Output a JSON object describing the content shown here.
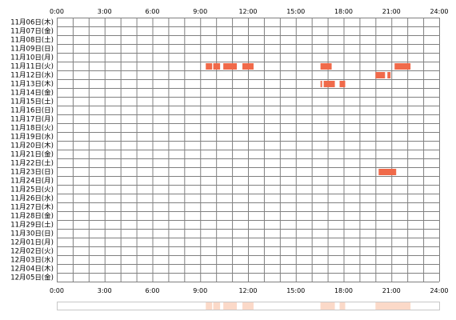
{
  "chart_data": {
    "type": "heatmap",
    "title": "",
    "xlabel": "",
    "ylabel": "",
    "x_ticks": [
      "0:00",
      "3:00",
      "6:00",
      "9:00",
      "12:00",
      "15:00",
      "18:00",
      "21:00",
      "24:00"
    ],
    "xlim": [
      0,
      24
    ],
    "x_unit": "hours",
    "rows": [
      "11月06日(木)",
      "11月07日(金)",
      "11月08日(土)",
      "11月09日(日)",
      "11月10日(月)",
      "11月11日(火)",
      "11月12日(水)",
      "11月13日(木)",
      "11月14日(金)",
      "11月15日(土)",
      "11月16日(日)",
      "11月17日(月)",
      "11月18日(火)",
      "11月19日(水)",
      "11月20日(木)",
      "11月21日(金)",
      "11月22日(土)",
      "11月23日(日)",
      "11月24日(月)",
      "11月25日(火)",
      "11月26日(水)",
      "11月27日(木)",
      "11月28日(金)",
      "11月29日(土)",
      "11月30日(日)",
      "12月01日(月)",
      "12月02日(火)",
      "12月03日(水)",
      "12月04日(木)",
      "12月05日(金)"
    ],
    "color": "#f06a4a",
    "summary_color": "#fbd9c8",
    "grid": true,
    "segments": [
      {
        "row": 5,
        "start": 9.35,
        "end": 9.75
      },
      {
        "row": 5,
        "start": 9.82,
        "end": 10.25
      },
      {
        "row": 5,
        "start": 10.45,
        "end": 11.3
      },
      {
        "row": 5,
        "start": 11.65,
        "end": 12.35
      },
      {
        "row": 5,
        "start": 16.55,
        "end": 17.25
      },
      {
        "row": 5,
        "start": 21.2,
        "end": 22.2
      },
      {
        "row": 6,
        "start": 20.0,
        "end": 20.6
      },
      {
        "row": 6,
        "start": 20.75,
        "end": 20.95
      },
      {
        "row": 7,
        "start": 16.55,
        "end": 16.65
      },
      {
        "row": 7,
        "start": 16.75,
        "end": 17.45
      },
      {
        "row": 7,
        "start": 17.75,
        "end": 18.1
      },
      {
        "row": 17,
        "start": 20.2,
        "end": 21.3
      }
    ]
  }
}
